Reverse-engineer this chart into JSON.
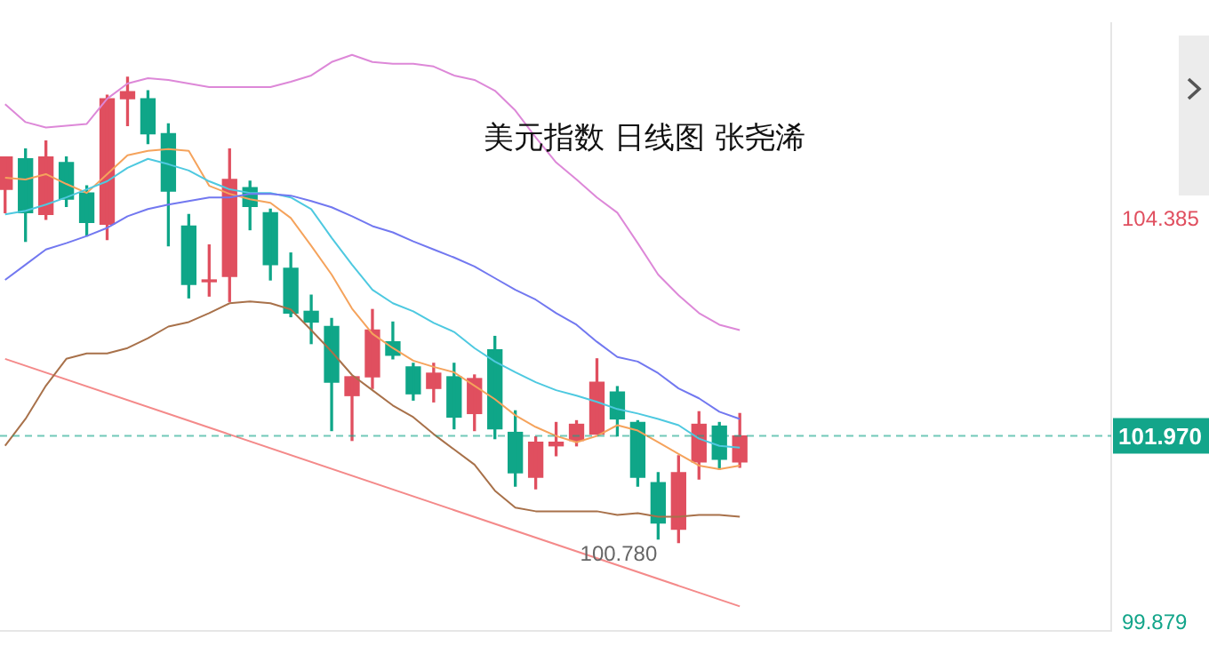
{
  "chart_data": {
    "type": "candlestick",
    "title": "美元指数 日线图 张尧浠",
    "categories": [
      null,
      null,
      null,
      null,
      null,
      null,
      null,
      null,
      null,
      null,
      null,
      null,
      null,
      null,
      null,
      null,
      null,
      null,
      null,
      null,
      null,
      null,
      null,
      null,
      null,
      null,
      null,
      null,
      null,
      null,
      null,
      null,
      null,
      null,
      null,
      null,
      null
    ],
    "ohlc": [
      [
        104.72,
        105.08,
        104.46,
        105.08
      ],
      [
        105.06,
        105.17,
        104.14,
        104.46
      ],
      [
        104.44,
        105.26,
        104.385,
        105.08
      ],
      [
        105.02,
        105.08,
        104.53,
        104.61
      ],
      [
        104.68,
        104.76,
        104.2,
        104.35
      ],
      [
        104.33,
        105.77,
        104.16,
        105.73
      ],
      [
        105.73,
        105.97,
        105.43,
        105.81
      ],
      [
        105.73,
        105.82,
        105.23,
        105.34
      ],
      [
        105.34,
        105.45,
        104.09,
        104.7
      ],
      [
        104.31,
        104.44,
        103.51,
        103.66
      ],
      [
        103.69,
        104.1,
        103.53,
        103.71
      ],
      [
        103.75,
        105.17,
        103.47,
        104.83
      ],
      [
        104.74,
        104.81,
        104.27,
        104.53
      ],
      [
        104.46,
        104.5,
        103.71,
        103.88
      ],
      [
        103.84,
        104.01,
        103.3,
        103.34
      ],
      [
        103.36,
        103.54,
        103.0,
        103.24
      ],
      [
        103.19,
        103.28,
        102.03,
        102.57
      ],
      [
        102.42,
        102.63,
        101.92,
        102.63
      ],
      [
        102.63,
        103.38,
        102.5,
        103.15
      ],
      [
        103.02,
        103.24,
        102.83,
        102.87
      ],
      [
        102.74,
        102.78,
        102.37,
        102.44
      ],
      [
        102.5,
        102.78,
        102.35,
        102.67
      ],
      [
        102.63,
        102.78,
        102.05,
        102.18
      ],
      [
        102.22,
        102.65,
        102.03,
        102.61
      ],
      [
        102.93,
        103.08,
        101.94,
        102.05
      ],
      [
        102.01,
        102.25,
        101.41,
        101.56
      ],
      [
        101.51,
        101.96,
        101.38,
        101.9
      ],
      [
        101.86,
        102.12,
        101.75,
        101.9
      ],
      [
        101.92,
        102.14,
        101.86,
        102.1
      ],
      [
        101.99,
        102.83,
        101.99,
        102.57
      ],
      [
        102.46,
        102.52,
        101.97,
        102.16
      ],
      [
        102.12,
        102.14,
        101.41,
        101.51
      ],
      [
        101.45,
        101.56,
        100.82,
        101.0
      ],
      [
        100.93,
        101.75,
        100.78,
        101.56
      ],
      [
        101.68,
        102.24,
        101.49,
        102.1
      ],
      [
        102.08,
        102.12,
        101.6,
        101.71
      ],
      [
        101.68,
        102.22,
        101.62,
        101.97
      ]
    ],
    "colors": [
      "#e04f5f",
      "#0fa688",
      "#e04f5f",
      "#0fa688",
      "#0fa688",
      "#e04f5f",
      "#e04f5f",
      "#0fa688",
      "#0fa688",
      "#0fa688",
      "#e04f5f",
      "#e04f5f",
      "#0fa688",
      "#0fa688",
      "#0fa688",
      "#0fa688",
      "#0fa688",
      "#e04f5f",
      "#e04f5f",
      "#0fa688",
      "#0fa688",
      "#e04f5f",
      "#0fa688",
      "#e04f5f",
      "#0fa688",
      "#0fa688",
      "#e04f5f",
      "#e04f5f",
      "#e04f5f",
      "#e04f5f",
      "#0fa688",
      "#0fa688",
      "#0fa688",
      "#e04f5f",
      "#e04f5f",
      "#0fa688",
      "#e04f5f"
    ],
    "series": [
      {
        "type": "line",
        "color": "#dd88d8",
        "values": [
          105.67,
          105.47,
          105.41,
          105.43,
          105.45,
          105.73,
          105.9,
          105.96,
          105.94,
          105.9,
          105.86,
          105.86,
          105.86,
          105.86,
          105.92,
          105.99,
          106.14,
          106.22,
          106.14,
          106.12,
          106.12,
          106.09,
          105.99,
          105.94,
          105.82,
          105.6,
          105.3,
          105.02,
          104.83,
          104.63,
          104.46,
          104.12,
          103.77,
          103.54,
          103.34,
          103.21,
          103.15
        ]
      },
      {
        "type": "line",
        "color": "#7278f0",
        "values": [
          103.71,
          103.88,
          104.05,
          104.12,
          104.2,
          104.29,
          104.42,
          104.5,
          104.55,
          104.59,
          104.63,
          104.63,
          104.67,
          104.67,
          104.65,
          104.59,
          104.52,
          104.42,
          104.31,
          104.24,
          104.14,
          104.05,
          103.96,
          103.86,
          103.73,
          103.6,
          103.49,
          103.34,
          103.21,
          103.02,
          102.85,
          102.8,
          102.67,
          102.5,
          102.39,
          102.24,
          102.16
        ]
      },
      {
        "type": "line",
        "color": "#4ec9e0",
        "values": [
          104.44,
          104.48,
          104.55,
          104.63,
          104.72,
          104.81,
          104.96,
          105.06,
          105.0,
          104.93,
          104.81,
          104.72,
          104.68,
          104.68,
          104.63,
          104.5,
          104.18,
          103.88,
          103.6,
          103.45,
          103.36,
          103.23,
          103.13,
          102.95,
          102.8,
          102.68,
          102.57,
          102.48,
          102.42,
          102.35,
          102.27,
          102.22,
          102.16,
          102.09,
          101.94,
          101.86,
          101.84
        ]
      },
      {
        "type": "line",
        "color": "#f5a35c",
        "values": [
          104.85,
          104.83,
          104.89,
          104.78,
          104.68,
          104.89,
          105.1,
          105.15,
          105.17,
          105.15,
          104.76,
          104.67,
          104.61,
          104.57,
          104.4,
          104.09,
          103.77,
          103.39,
          103.11,
          102.95,
          102.81,
          102.74,
          102.68,
          102.53,
          102.38,
          102.2,
          102.07,
          101.97,
          101.9,
          101.97,
          102.09,
          102.03,
          101.9,
          101.77,
          101.64,
          101.6,
          101.64
        ]
      },
      {
        "type": "line",
        "color": "#a8714a",
        "values": [
          101.86,
          102.16,
          102.53,
          102.83,
          102.89,
          102.89,
          102.95,
          103.06,
          103.19,
          103.24,
          103.34,
          103.45,
          103.47,
          103.45,
          103.38,
          103.15,
          102.91,
          102.65,
          102.48,
          102.31,
          102.18,
          101.99,
          101.82,
          101.65,
          101.36,
          101.17,
          101.13,
          101.13,
          101.13,
          101.13,
          101.09,
          101.11,
          101.07,
          101.07,
          101.09,
          101.09,
          101.07
        ]
      },
      {
        "type": "line",
        "color": "#f48a8a",
        "values": [
          102.83,
          null,
          null,
          null,
          null,
          null,
          null,
          null,
          null,
          null,
          null,
          null,
          null,
          null,
          null,
          null,
          null,
          null,
          null,
          null,
          null,
          null,
          null,
          null,
          null,
          null,
          null,
          null,
          null,
          null,
          null,
          null,
          null,
          null,
          null,
          null,
          100.07
        ]
      }
    ],
    "ylim": [
      99.8,
      106.57
    ],
    "yticks": [
      104.385,
      99.879
    ],
    "tick_labels": "y",
    "grid": false,
    "legend": false,
    "ref_lines": [
      {
        "axis": "y",
        "value": 101.97,
        "label": "101.970",
        "color": "#13a58a",
        "line_style": "dashed"
      }
    ],
    "annotations": [
      "100.780"
    ]
  }
}
